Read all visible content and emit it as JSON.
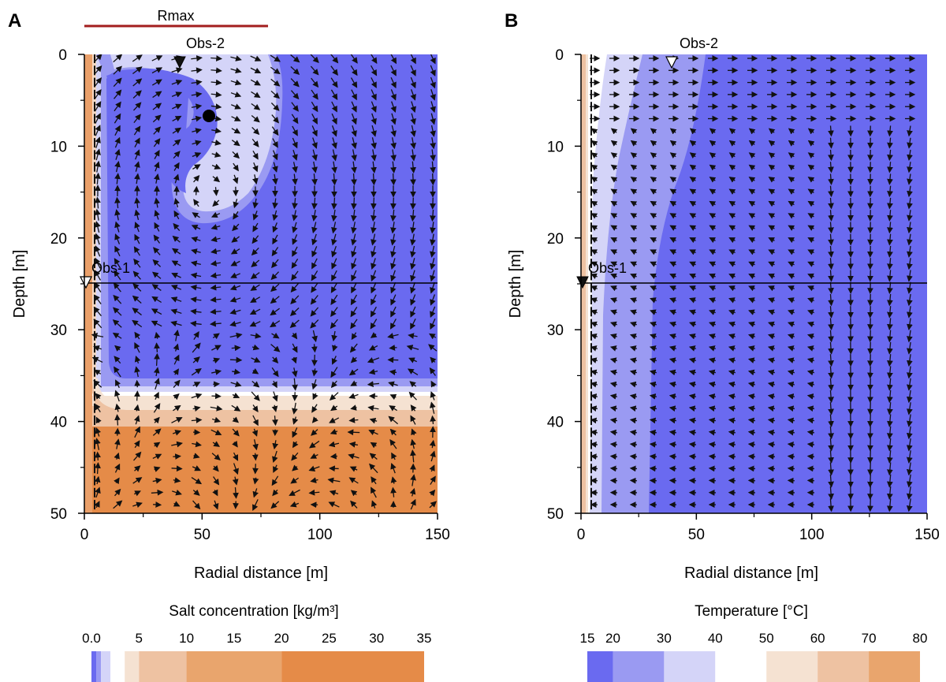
{
  "chart_data": [
    {
      "panel": "A",
      "type": "heatmap",
      "plot_kind": "filled contour with velocity vectors",
      "xlabel": "Radial distance [m]",
      "ylabel": "Depth [m]",
      "xlim": [
        0,
        150
      ],
      "ylim": [
        50,
        0
      ],
      "xticks": [
        0,
        50,
        100,
        150
      ],
      "yticks": [
        0,
        10,
        20,
        30,
        40,
        50
      ],
      "annotations": [
        {
          "label": "Rmax",
          "kind": "bar",
          "x_range": [
            0,
            78
          ],
          "color": "#a31e1e"
        },
        {
          "label": "Obs-1",
          "kind": "observation-marker",
          "x": 1,
          "y": 25
        },
        {
          "label": "Obs-2",
          "kind": "observation-marker",
          "x": 40,
          "y": 1
        },
        {
          "kind": "reference-line",
          "depth": 25
        },
        {
          "kind": "point",
          "x": 53,
          "y": 6.8
        }
      ],
      "colorbar": {
        "title": "Salt concentration [kg/m³]",
        "tick_labels": [
          "0.0",
          "5",
          "10",
          "15",
          "20",
          "25",
          "30",
          "35"
        ],
        "tick_values": [
          0,
          5,
          10,
          15,
          20,
          25,
          30,
          35
        ],
        "levels": [
          0,
          0.5,
          1,
          2,
          3.5,
          5,
          10,
          20,
          35
        ],
        "colors": [
          "#6a6af0",
          "#9a9af2",
          "#d4d4f8",
          "#ffffff",
          "#f5e2d2",
          "#eec2a2",
          "#e9a56d",
          "#e58b48"
        ]
      }
    },
    {
      "panel": "B",
      "type": "heatmap",
      "plot_kind": "filled contour with velocity vectors",
      "xlabel": "Radial distance [m]",
      "ylabel": "Depth [m]",
      "xlim": [
        0,
        150
      ],
      "ylim": [
        50,
        0
      ],
      "xticks": [
        0,
        50,
        100,
        150
      ],
      "yticks": [
        0,
        10,
        20,
        30,
        40,
        50
      ],
      "annotations": [
        {
          "label": "Obs-1",
          "kind": "observation-marker",
          "x": 1,
          "y": 25
        },
        {
          "label": "Obs-2",
          "kind": "observation-marker",
          "x": 40,
          "y": 1
        },
        {
          "kind": "reference-line",
          "depth": 25
        }
      ],
      "colorbar": {
        "title": "Temperature [°C]",
        "tick_labels": [
          "15",
          "20",
          "30",
          "40",
          "50",
          "60",
          "70",
          "80"
        ],
        "tick_values": [
          15,
          20,
          30,
          40,
          50,
          60,
          70,
          80
        ],
        "levels": [
          15,
          20,
          30,
          40,
          50,
          60,
          70,
          80
        ],
        "colors": [
          "#6a6af0",
          "#9a9af2",
          "#d4d4f8",
          "#ffffff",
          "#f5e2d2",
          "#eec2a2",
          "#e9a56d"
        ]
      }
    }
  ]
}
